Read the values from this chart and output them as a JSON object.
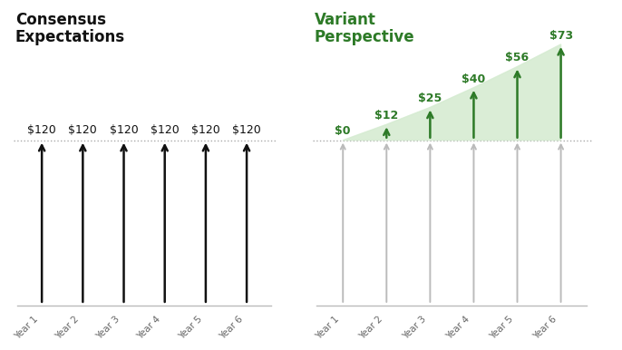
{
  "consensus_title_line1": "Consensus",
  "consensus_title_line2": "Expectations",
  "variant_title_line1": "Variant",
  "variant_title_line2": "Perspective",
  "years": [
    "Year 1",
    "Year 2",
    "Year 3",
    "Year 4",
    "Year 5",
    "Year 6"
  ],
  "consensus_labels": [
    "$120",
    "$120",
    "$120",
    "$120",
    "$120",
    "$120"
  ],
  "variant_labels": [
    "$0",
    "$12",
    "$25",
    "$40",
    "$56",
    "$73"
  ],
  "variant_values": [
    0,
    12,
    25,
    40,
    56,
    73
  ],
  "variant_max": 73,
  "consensus_arrow_color": "#111111",
  "variant_arrow_color": "#2d7a27",
  "variant_gray_color": "#bbbbbb",
  "dotted_line_color": "#aaaaaa",
  "fill_color": "#d6ecd2",
  "baseline_color": "#bbbbbb",
  "title_consensus_color": "#111111",
  "title_variant_color": "#2d7a27",
  "background_color": "#ffffff",
  "title_fontsize": 12,
  "label_fontsize": 9,
  "tick_fontsize": 7.5,
  "arrow_lw": 1.8,
  "gray_arrow_lw": 1.4
}
